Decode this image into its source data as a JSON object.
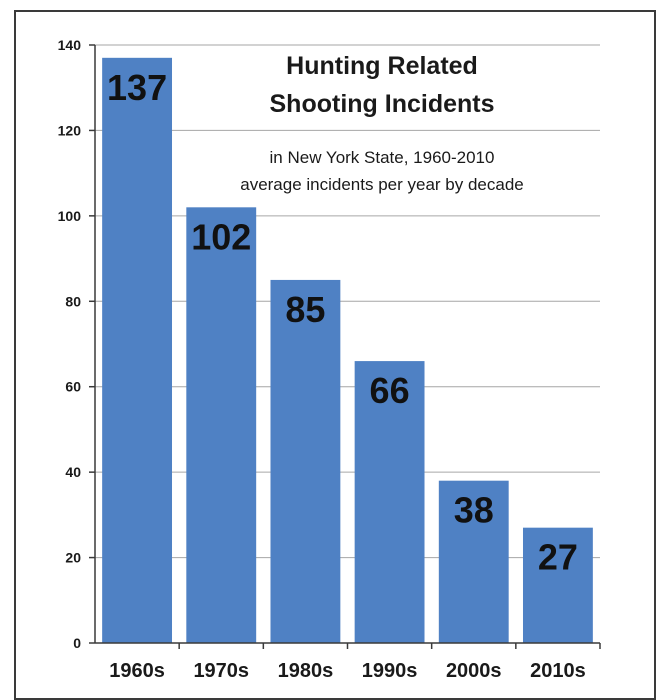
{
  "chart_data": {
    "type": "bar",
    "title": [
      "Hunting Related",
      "Shooting Incidents"
    ],
    "subtitle": [
      "in New York State, 1960-2010",
      "average incidents per year by decade"
    ],
    "categories": [
      "1960s",
      "1970s",
      "1980s",
      "1990s",
      "2000s",
      "2010s"
    ],
    "values": [
      137,
      102,
      85,
      66,
      38,
      27
    ],
    "data_labels": [
      "137",
      "102",
      "85",
      "66",
      "38",
      "27"
    ],
    "yticks": [
      0,
      20,
      40,
      60,
      80,
      100,
      120,
      140
    ],
    "ylim": [
      0,
      140
    ],
    "xlabel": "",
    "ylabel": "",
    "grid": true,
    "legend": "none",
    "colors": {
      "bar": "#4f81c4",
      "grid": "#a6a6a6",
      "axis": "#3a3a3a",
      "text": "#1a1a1a"
    }
  }
}
